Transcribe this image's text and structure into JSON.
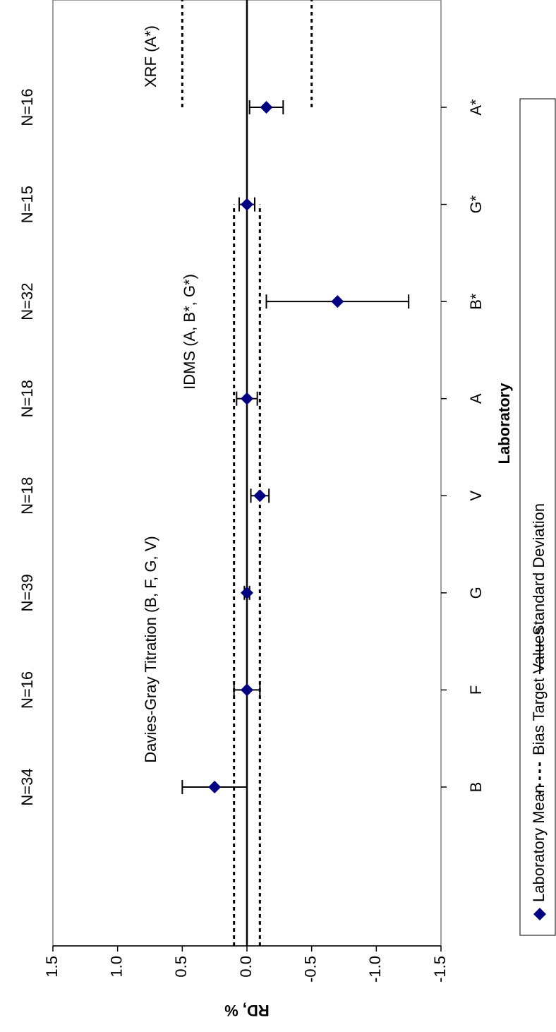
{
  "chart_data": {
    "type": "errorbar",
    "x_label": "Laboratory",
    "y_label": "RD, %",
    "categories": [
      "B",
      "F",
      "G",
      "V",
      "A",
      "B*",
      "G*",
      "A*"
    ],
    "n_labels": [
      "N=34",
      "N=16",
      "N=39",
      "N=18",
      "N=18",
      "N=32",
      "N=15",
      "N=16"
    ],
    "annotations": [
      "Davies-Gray Titration (B, F, G, V)",
      "IDMS (A, B*, G*)",
      "XRF (A*)"
    ],
    "series": [
      {
        "name": "Laboratory Mean",
        "color": "#000080",
        "values": [
          0.25,
          0.0,
          0.0,
          -0.1,
          0.0,
          -0.7,
          0.0,
          -0.15
        ]
      }
    ],
    "errors": {
      "name": "Standard Deviation",
      "color": "#000000",
      "values": [
        0.25,
        0.1,
        0.02,
        0.07,
        0.08,
        0.55,
        0.06,
        0.13
      ]
    },
    "bias_target": {
      "name": "Bias Target Values",
      "color": "#000000",
      "values": [
        0.1,
        0.1,
        0.1,
        0.1,
        0.1,
        0.1,
        0.1,
        0.5
      ]
    },
    "ylim": [
      -1.5,
      1.5
    ],
    "yticks": [
      1.5,
      {
        "value": 1.0,
        "label": "1.0"
      },
      0.5,
      {
        "value": 0.0,
        "label": "0.0"
      },
      -0.5,
      {
        "value": -1.0,
        "label": "-1.0"
      },
      -1.5
    ],
    "rotated": true
  }
}
